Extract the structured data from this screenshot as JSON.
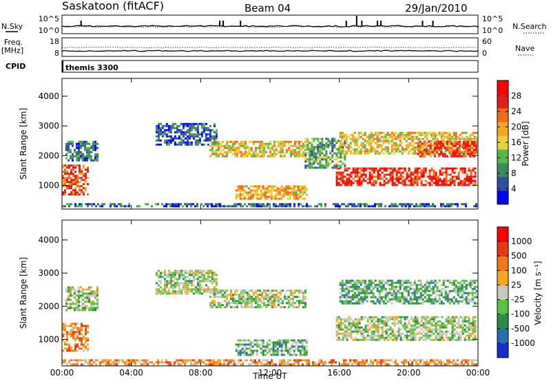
{
  "header": {
    "station": "Saskatoon (fitACF)",
    "beam": "Beam 04",
    "date": "29/Jan/2010"
  },
  "strip_nsky": {
    "left_label": "N.Sky",
    "right_label": "N.Search",
    "left_ticks": [
      "10^5",
      "10^0"
    ],
    "right_ticks": [
      "10^5",
      "10^0"
    ]
  },
  "strip_freq": {
    "left_label_1": "Freq.",
    "left_label_2": "[MHz]",
    "right_label": "Nave",
    "left_ticks": [
      "18",
      "8"
    ],
    "right_ticks": [
      "60",
      "0"
    ]
  },
  "cpid": {
    "label": "CPID",
    "value": "themis 3300"
  },
  "colors": {
    "power_scale": [
      "#0000ff",
      "#2c4ea3",
      "#3d8a5a",
      "#56b84a",
      "#e6d23a",
      "#f5a623",
      "#f06a1e",
      "#e22015",
      "#ff0000"
    ],
    "velocity_scale": [
      "#1530c8",
      "#2a6fb0",
      "#2f8a4a",
      "#5cc040",
      "#c8c8c0",
      "#f5a623",
      "#f07a1a",
      "#e83a12",
      "#ff0000"
    ]
  },
  "chart_data": [
    {
      "type": "heatmap",
      "name": "power",
      "ylabel": "Slant Range [km]",
      "x_ticks": [
        "00:00",
        "04:00",
        "08:00",
        "12:00",
        "16:00",
        "20:00",
        "00:00"
      ],
      "y_ticks": [
        "1000",
        "2000",
        "3000",
        "4000"
      ],
      "ylim": [
        200,
        4600
      ],
      "colorbar_label": "Power [dB]",
      "colorbar_ticks": [
        "4",
        "8",
        "12",
        "16",
        "20",
        "24",
        "28"
      ],
      "colorbar_range": [
        0,
        32
      ],
      "regions": [
        {
          "x": [
            0.0,
            1.6
          ],
          "y": [
            600,
            1700
          ],
          "level": 0.75
        },
        {
          "x": [
            0.2,
            2.2
          ],
          "y": [
            1800,
            2500
          ],
          "level": 0.25
        },
        {
          "x": [
            5.4,
            9.0
          ],
          "y": [
            2300,
            3100
          ],
          "level": 0.18
        },
        {
          "x": [
            8.5,
            14.2
          ],
          "y": [
            1900,
            2500
          ],
          "level": 0.55
        },
        {
          "x": [
            10.0,
            14.2
          ],
          "y": [
            450,
            1000
          ],
          "level": 0.6
        },
        {
          "x": [
            14.0,
            16.4
          ],
          "y": [
            1500,
            2600
          ],
          "level": 0.35
        },
        {
          "x": [
            15.8,
            24.0
          ],
          "y": [
            950,
            1600
          ],
          "level": 0.85
        },
        {
          "x": [
            16.0,
            24.0
          ],
          "y": [
            2000,
            2800
          ],
          "level": 0.55
        },
        {
          "x": [
            20.5,
            24.0
          ],
          "y": [
            1900,
            2500
          ],
          "level": 0.8
        },
        {
          "x": [
            0.0,
            24.0
          ],
          "y": [
            200,
            400
          ],
          "level": 0.2
        }
      ]
    },
    {
      "type": "heatmap",
      "name": "velocity",
      "xlabel": "Time UT",
      "ylabel": "Slant Range [km]",
      "x_ticks": [
        "00:00",
        "04:00",
        "08:00",
        "12:00",
        "16:00",
        "20:00",
        "00:00"
      ],
      "y_ticks": [
        "1000",
        "2000",
        "3000",
        "4000"
      ],
      "ylim": [
        200,
        4600
      ],
      "colorbar_label": "Velocity [m s⁻¹]",
      "colorbar_ticks": [
        "1000",
        "500",
        "100",
        "25",
        "-25",
        "-100",
        "-500",
        "-1000"
      ],
      "regions": [
        {
          "x": [
            0.0,
            1.6
          ],
          "y": [
            600,
            1500
          ],
          "level": 0.7
        },
        {
          "x": [
            0.2,
            2.2
          ],
          "y": [
            1800,
            2600
          ],
          "level": 0.45
        },
        {
          "x": [
            5.4,
            9.0
          ],
          "y": [
            2300,
            3100
          ],
          "level": 0.45
        },
        {
          "x": [
            8.5,
            14.2
          ],
          "y": [
            1900,
            2500
          ],
          "level": 0.45
        },
        {
          "x": [
            10.0,
            14.2
          ],
          "y": [
            500,
            1000
          ],
          "level": 0.35
        },
        {
          "x": [
            15.8,
            24.0
          ],
          "y": [
            950,
            1700
          ],
          "level": 0.45
        },
        {
          "x": [
            16.0,
            24.0
          ],
          "y": [
            2000,
            2800
          ],
          "level": 0.35
        },
        {
          "x": [
            0.0,
            24.0
          ],
          "y": [
            200,
            400
          ],
          "level": 0.65
        }
      ]
    }
  ]
}
